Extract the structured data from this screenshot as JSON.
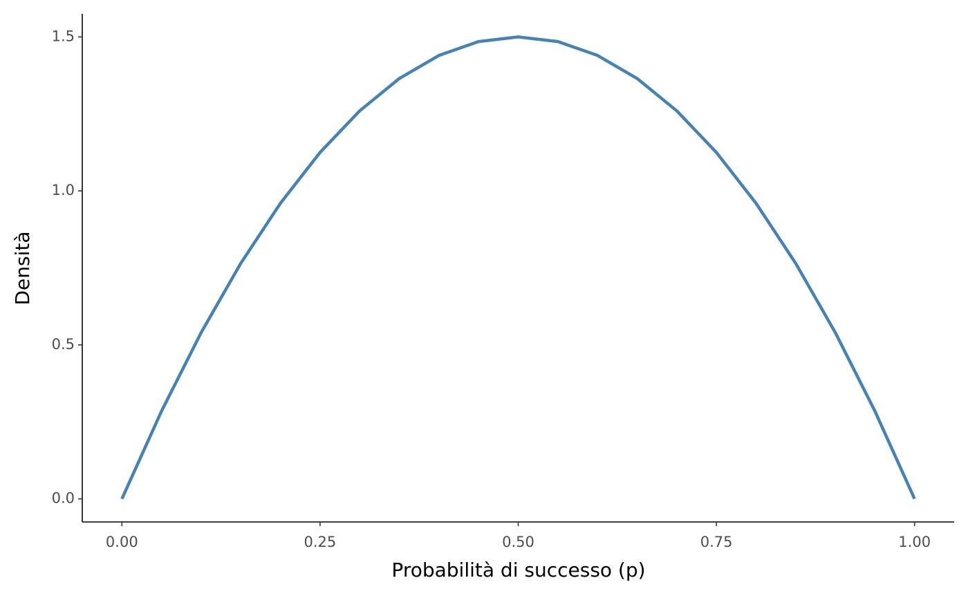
{
  "chart_data": {
    "type": "line",
    "x_label": "Probabilità di successo (p)",
    "y_label": "Densità",
    "x": [
      0,
      0.05,
      0.1,
      0.15,
      0.2,
      0.25,
      0.3,
      0.35,
      0.4,
      0.45,
      0.5,
      0.55,
      0.6,
      0.65,
      0.7,
      0.75,
      0.8,
      0.85,
      0.9,
      0.95,
      1
    ],
    "series": [
      {
        "color": "#4682b4",
        "values": [
          0,
          0.285,
          0.54,
          0.765,
          0.96,
          1.125,
          1.26,
          1.365,
          1.44,
          1.485,
          1.5,
          1.485,
          1.44,
          1.365,
          1.26,
          1.125,
          0.96,
          0.765,
          0.54,
          0.285,
          0
        ]
      }
    ],
    "xlim": [
      -0.05,
      1.05
    ],
    "ylim": [
      -0.075,
      1.575
    ],
    "xticks": [
      {
        "value": 0,
        "label": "0.00"
      },
      {
        "value": 0.25,
        "label": "0.25"
      },
      {
        "value": 0.5,
        "label": "0.50"
      },
      {
        "value": 0.75,
        "label": "0.75"
      },
      {
        "value": 1,
        "label": "1.00"
      }
    ],
    "yticks": [
      {
        "value": 0,
        "label": "0.0"
      },
      0.5,
      {
        "value": 1,
        "label": "1.0"
      },
      1.5
    ],
    "grid": false
  }
}
